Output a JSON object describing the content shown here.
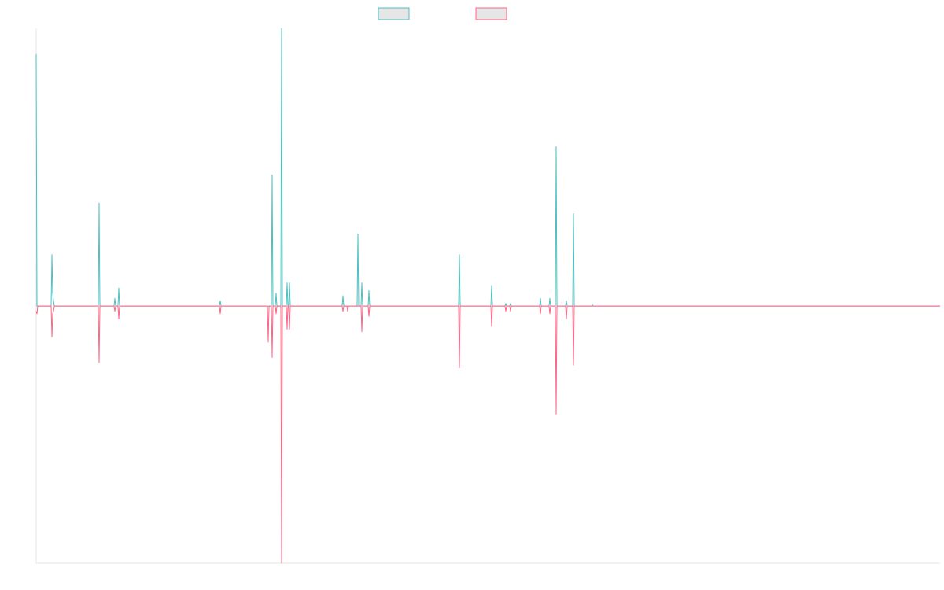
{
  "chart_data": {
    "type": "line",
    "title": "",
    "xlabel": "",
    "ylabel": "",
    "ylim": [
      -1.0,
      1.08
    ],
    "grid": false,
    "legend": {
      "placement": "top-center",
      "entries": [
        {
          "label": "",
          "stroke": "#4bc0c0",
          "fill": "#e6e6e6"
        },
        {
          "label": "",
          "stroke": "#ff6384",
          "fill": "#e6e6e6"
        }
      ]
    },
    "x": [
      0,
      1,
      2,
      3,
      4,
      5,
      6,
      7,
      8,
      9,
      10,
      11,
      12,
      13,
      14,
      15,
      16,
      17,
      18,
      19,
      20,
      21,
      22,
      23,
      24,
      25,
      26,
      27,
      28,
      29,
      30,
      31,
      32,
      33,
      34,
      35,
      36,
      37,
      38,
      39,
      40,
      41,
      42,
      43,
      44,
      45,
      46,
      47,
      48,
      49,
      50,
      51,
      52,
      53,
      54,
      55,
      56,
      57,
      58,
      59,
      60,
      61,
      62,
      63,
      64,
      65,
      66,
      67,
      68,
      69,
      70,
      71,
      72,
      73,
      74,
      75,
      76,
      77,
      78,
      79,
      80,
      81,
      82,
      83,
      84,
      85,
      86,
      87,
      88,
      89,
      90,
      91,
      92,
      93,
      94,
      95,
      96,
      97,
      98,
      99,
      100,
      101,
      102,
      103,
      104,
      105,
      106,
      107,
      108,
      109,
      110,
      111,
      112,
      113,
      114,
      115,
      116,
      117,
      118,
      119,
      120,
      121,
      122,
      123,
      124,
      125,
      126,
      127,
      128,
      129,
      130,
      131,
      132,
      133,
      134,
      135,
      136,
      137,
      138,
      139,
      140,
      141,
      142,
      143,
      144,
      145,
      146,
      147,
      148,
      149,
      150,
      151,
      152,
      153,
      154,
      155,
      156,
      157,
      158,
      159,
      160,
      161,
      162,
      163,
      164,
      165,
      166,
      167,
      168,
      169,
      170,
      171,
      172,
      173,
      174,
      175,
      176,
      177,
      178,
      179,
      180,
      181,
      182,
      183,
      184,
      185,
      186,
      187,
      188,
      189,
      190,
      191,
      192,
      193,
      194,
      195,
      196,
      197,
      198,
      199,
      200,
      201,
      202,
      203,
      204,
      205,
      206,
      207,
      208,
      209,
      210,
      211,
      212,
      213,
      214,
      215,
      216,
      217,
      218,
      219,
      220,
      221,
      222,
      223,
      224,
      225,
      226,
      227,
      228,
      229,
      230,
      231,
      232,
      233,
      234,
      235,
      236,
      237,
      238,
      239,
      240,
      241,
      242,
      243,
      244,
      245,
      246,
      247,
      248,
      249,
      250,
      251,
      252,
      253,
      254,
      255,
      256,
      257,
      258,
      259,
      260,
      261,
      262,
      263,
      264,
      265,
      266,
      267,
      268,
      269,
      270,
      271,
      272,
      273,
      274,
      275,
      276,
      277,
      278,
      279,
      280,
      281,
      282,
      283,
      284,
      285,
      286,
      287,
      288,
      289,
      290,
      291,
      292,
      293,
      294,
      295,
      296,
      297,
      298,
      299,
      300,
      301,
      302,
      303,
      304,
      305,
      306,
      307,
      308,
      309,
      310,
      311,
      312,
      313,
      314,
      315,
      316,
      317,
      318,
      319,
      320,
      321,
      322,
      323,
      324,
      325,
      326,
      327,
      328,
      329,
      330,
      331,
      332,
      333,
      334,
      335,
      336,
      337,
      338,
      339,
      340,
      341,
      342,
      343,
      344,
      345,
      346,
      347,
      348,
      349,
      350,
      351,
      352,
      353,
      354,
      355,
      356,
      357,
      358,
      359,
      360,
      361,
      362,
      363,
      364,
      365,
      366,
      367,
      368,
      369,
      370,
      371,
      372,
      373,
      374,
      375,
      376,
      377,
      378,
      379,
      380,
      381,
      382,
      383,
      384,
      385,
      386,
      387,
      388,
      389,
      390,
      391,
      392,
      393,
      394,
      395,
      396,
      397,
      398,
      399,
      400,
      401,
      402,
      403,
      404,
      405,
      406,
      407,
      408,
      409,
      410,
      411,
      412,
      413,
      414,
      415,
      416,
      417,
      418,
      419,
      420,
      421,
      422,
      423,
      424,
      425,
      426,
      427,
      428,
      429,
      430,
      431,
      432,
      433,
      434,
      435,
      436,
      437,
      438,
      439,
      440,
      441,
      442,
      443,
      444,
      445,
      446,
      447,
      448,
      449,
      450,
      451,
      452,
      453,
      454,
      455,
      456,
      457,
      458,
      459,
      460,
      461,
      462,
      463,
      464,
      465,
      466,
      467,
      468,
      469,
      470,
      471,
      472,
      473,
      474,
      475,
      476,
      477,
      478,
      479,
      480,
      481,
      482,
      483,
      484,
      485,
      486,
      487,
      488,
      489,
      490,
      491,
      492,
      493,
      494,
      495,
      496,
      497,
      498,
      499,
      500,
      501,
      502,
      503,
      504,
      505,
      506,
      507,
      508,
      509,
      510,
      511,
      512,
      513,
      514,
      515,
      516,
      517,
      518,
      519,
      520,
      521,
      522,
      523,
      524,
      525,
      526,
      527,
      528,
      529,
      530,
      531,
      532,
      533,
      534,
      535,
      536,
      537,
      538,
      539,
      540,
      541,
      542,
      543,
      544,
      545,
      546,
      547,
      548,
      549,
      550,
      551,
      552,
      553,
      554,
      555,
      556,
      557,
      558,
      559,
      560,
      561,
      562,
      563,
      564,
      565,
      566,
      567,
      568,
      569,
      570,
      571,
      572,
      573,
      574,
      575,
      576,
      577,
      578,
      579,
      580,
      581,
      582,
      583,
      584,
      585,
      586,
      587,
      588,
      589,
      590,
      591,
      592,
      593,
      594,
      595,
      596,
      597,
      598,
      599,
      600,
      601,
      602,
      603,
      604,
      605,
      606,
      607,
      608,
      609,
      610,
      611,
      612,
      613,
      614,
      615,
      616,
      617,
      618,
      619,
      620,
      621,
      622,
      623,
      624,
      625,
      626,
      627,
      628,
      629,
      630,
      631,
      632,
      633,
      634,
      635,
      636,
      637,
      638,
      639,
      640,
      641,
      642,
      643,
      644,
      645,
      646,
      647,
      648,
      649,
      650,
      651,
      652,
      653,
      654,
      655,
      656,
      657,
      658,
      659,
      660,
      661,
      662,
      663,
      664,
      665,
      666,
      667,
      668,
      669,
      670,
      671,
      672,
      673,
      674,
      675,
      676,
      677,
      678,
      679,
      680,
      681,
      682,
      683,
      684,
      685,
      686,
      687,
      688,
      689,
      690,
      691,
      692,
      693,
      694,
      695,
      696,
      697,
      698,
      699,
      700,
      701,
      702,
      703,
      704,
      705,
      706,
      707,
      708,
      709,
      710,
      711,
      712,
      713,
      714,
      715,
      716,
      717,
      718,
      719,
      720,
      721,
      722,
      723,
      724,
      725,
      726,
      727,
      728,
      729,
      730,
      731,
      732,
      733,
      734,
      735,
      736,
      737,
      738,
      739,
      740,
      741,
      742,
      743,
      744,
      745,
      746,
      747,
      748,
      749,
      750,
      751,
      752,
      753,
      754,
      755,
      756,
      757,
      758,
      759,
      760,
      761,
      762,
      763,
      764,
      765,
      766,
      767,
      768,
      769,
      770,
      771,
      772,
      773,
      774,
      775,
      776,
      777,
      778,
      779,
      780,
      781,
      782,
      783,
      784,
      785,
      786,
      787,
      788,
      789,
      790,
      791,
      792,
      793,
      794,
      795,
      796,
      797,
      798,
      799,
      800,
      801,
      802,
      803,
      804,
      805,
      806,
      807,
      808,
      809,
      810,
      811,
      812,
      813,
      814,
      815,
      816,
      817,
      818,
      819,
      820,
      821,
      822,
      823,
      824,
      825,
      826,
      827,
      828,
      829,
      830,
      831,
      832,
      833,
      834,
      835,
      836,
      837,
      838,
      839,
      840,
      841,
      842,
      843,
      844,
      845,
      846,
      847,
      848,
      849,
      850,
      851,
      852,
      853,
      854,
      855,
      856,
      857,
      858,
      859,
      860,
      861,
      862,
      863,
      864,
      865,
      866,
      867,
      868,
      869,
      870,
      871,
      872,
      873,
      874,
      875,
      876,
      877,
      878,
      879,
      880,
      881,
      882,
      883,
      884,
      885,
      886,
      887,
      888,
      889,
      890,
      891,
      892,
      893,
      894,
      895,
      896,
      897,
      898,
      899,
      900,
      901,
      902,
      903,
      904,
      905,
      906,
      907,
      908,
      909,
      910,
      911,
      912,
      913,
      914,
      915,
      916,
      917,
      918,
      919,
      920,
      921,
      922,
      923,
      924,
      925,
      926,
      927,
      928,
      929,
      930,
      931,
      932,
      933,
      934,
      935,
      936,
      937,
      938,
      939,
      940,
      941,
      942,
      943,
      944,
      945,
      946,
      947,
      948,
      949,
      950,
      951,
      952,
      953,
      954,
      955,
      956,
      957,
      958,
      959,
      960,
      961,
      962,
      963,
      964,
      965,
      966,
      967,
      968,
      969,
      970,
      971,
      972,
      973,
      974,
      975,
      976,
      977,
      978,
      979,
      980,
      981,
      982,
      983,
      984,
      985,
      986,
      987,
      988,
      989,
      990,
      991,
      992,
      993,
      994,
      995,
      996,
      997,
      998,
      999,
      1000,
      1001,
      1002,
      1003,
      1004,
      1005,
      1006,
      1007,
      1008,
      1009,
      1010,
      1011,
      1012,
      1013,
      1014,
      1015,
      1016,
      1017,
      1018,
      1019,
      1020,
      1021,
      1022,
      1023,
      1024,
      1025,
      1026,
      1027,
      1028,
      1029,
      1030,
      1031,
      1032,
      1033,
      1034,
      1035,
      1036,
      1037,
      1038,
      1039,
      1040,
      1041,
      1042,
      1043,
      1044,
      1045,
      1046,
      1047,
      1048,
      1049,
      1050,
      1051,
      1052,
      1053,
      1054,
      1055,
      1056,
      1057,
      1058,
      1059,
      1060,
      1061,
      1062,
      1063,
      1064,
      1065,
      1066,
      1067,
      1068,
      1069,
      1070,
      1071,
      1072,
      1073,
      1074,
      1075,
      1076,
      1077,
      1078,
      1079,
      1080,
      1081,
      1082,
      1083,
      1084,
      1085,
      1086,
      1087,
      1088,
      1089,
      1090,
      1091,
      1092,
      1093,
      1094,
      1095,
      1096,
      1097,
      1098,
      1099,
      1100,
      1101,
      1102,
      1103,
      1104,
      1105,
      1106,
      1107,
      1108,
      1109,
      1110,
      1111,
      1112,
      1113,
      1114,
      1115,
      1116,
      1117,
      1118,
      1119,
      1120,
      1121,
      1122,
      1123,
      1124,
      1125,
      1126,
      1127,
      1128,
      1129,
      1130,
      1131,
      1132,
      1133,
      1134,
      1135,
      1136,
      1137,
      1138,
      1139,
      1140,
      1141,
      1142,
      1143,
      1144,
      1145,
      1146,
      1147,
      1148,
      1149
    ],
    "series": [
      {
        "stroke": "#4bc0c0",
        "values_sparse": {
          "0": 0.98,
          "20": 0.2,
          "21": 0.05,
          "22": 0.02,
          "80": 0.4,
          "100": 0.03,
          "105": 0.07,
          "234": 0.02,
          "300": 0.51,
          "305": 0.05,
          "312": 1.08,
          "319": 0.09,
          "322": 0.09,
          "390": 0.04,
          "409": 0.28,
          "414": 0.09,
          "423": 0.06,
          "538": 0.2,
          "579": 0.08,
          "597": 0.01,
          "603": 0.01,
          "641": 0.03,
          "653": 0.03,
          "661": 0.62,
          "674": 0.02,
          "683": 0.36,
          "707": 0.005
        }
      },
      {
        "stroke": "#ff6384",
        "values_sparse": {
          "0": -0.02,
          "1": -0.03,
          "20": -0.12,
          "21": -0.03,
          "22": -0.02,
          "80": -0.22,
          "100": -0.02,
          "105": -0.05,
          "234": -0.03,
          "295": -0.14,
          "300": -0.2,
          "305": -0.03,
          "312": -1.0,
          "319": -0.09,
          "322": -0.09,
          "390": -0.02,
          "396": -0.02,
          "414": -0.1,
          "423": -0.04,
          "538": -0.24,
          "579": -0.08,
          "597": -0.02,
          "603": -0.02,
          "641": -0.03,
          "653": -0.03,
          "661": -0.42,
          "674": -0.05,
          "683": -0.23
        }
      }
    ]
  }
}
